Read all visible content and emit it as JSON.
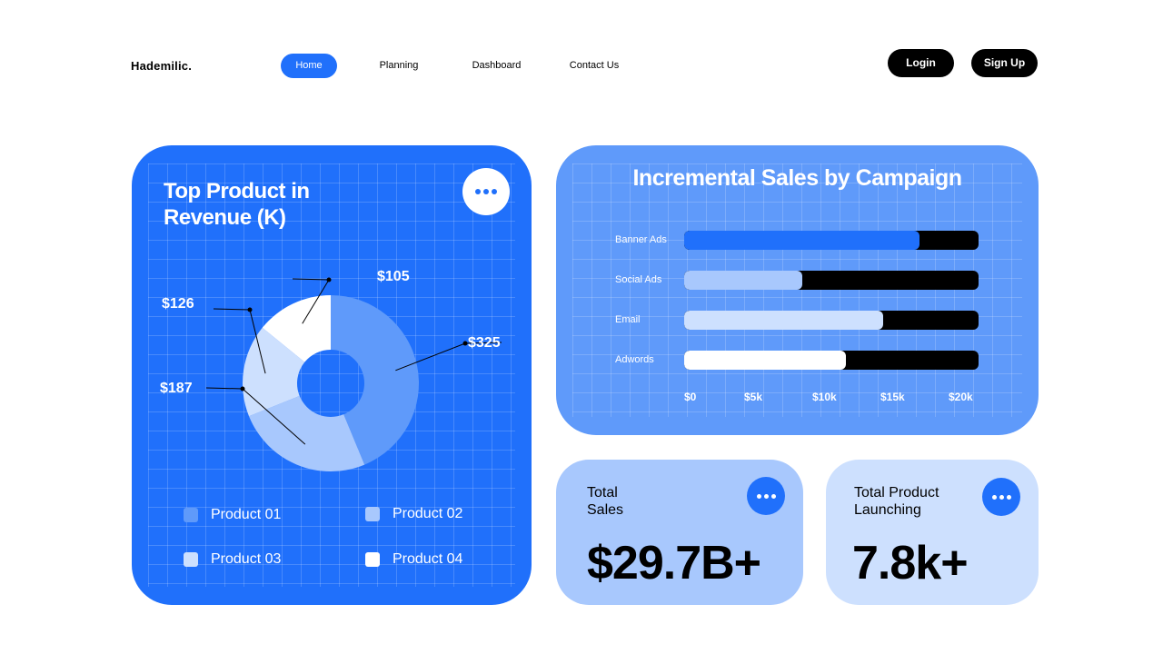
{
  "brand": "Hademilic.",
  "nav": {
    "items": [
      "Home",
      "Planning",
      "Dashboard",
      "Contact Us"
    ],
    "active": "Home"
  },
  "auth": {
    "login": "Login",
    "signup": "Sign Up"
  },
  "colors": {
    "primary_blue": "#2070fb",
    "campaign_card": "#5f9afa",
    "sales_card": "#a8c8fd",
    "launch_card": "#cde0fe",
    "black": "#000000"
  },
  "revenue_card": {
    "title": "Top Product in Revenue (K)",
    "icon": "more-horizontal-icon",
    "legend": [
      {
        "label": "Product 01",
        "color": "#5f9afa"
      },
      {
        "label": "Product 02",
        "color": "#a8c8fd"
      },
      {
        "label": "Product 03",
        "color": "#cde0fe"
      },
      {
        "label": "Product 04",
        "color": "#ffffff"
      }
    ]
  },
  "campaign_card": {
    "title": "Incremental Sales by Campaign"
  },
  "sales_card": {
    "label_line1": "Total",
    "label_line2": "Sales",
    "value": "$29.7B+",
    "icon": "more-horizontal-icon"
  },
  "launch_card": {
    "label_line1": "Total Product",
    "label_line2": "Launching",
    "value": "7.8k+",
    "icon": "more-horizontal-icon"
  },
  "chart_data": [
    {
      "type": "pie",
      "title": "Top Product in Revenue (K)",
      "donut": true,
      "categories": [
        "Product 01",
        "Product 02",
        "Product 03",
        "Product 04"
      ],
      "values": [
        325,
        187,
        126,
        105
      ],
      "data_labels": [
        "$325",
        "$187",
        "$126",
        "$105"
      ],
      "colors": [
        "#5f9afa",
        "#a8c8fd",
        "#cde0fe",
        "#ffffff"
      ],
      "legend_position": "bottom"
    },
    {
      "type": "bar",
      "orientation": "horizontal",
      "title": "Incremental Sales by Campaign",
      "categories": [
        "Banner Ads",
        "Social Ads",
        "Email",
        "Adwords"
      ],
      "values": [
        16000,
        8000,
        13500,
        11000
      ],
      "xlim": [
        0,
        20000
      ],
      "x_ticks": [
        "$0",
        "$5k",
        "$10k",
        "$15k",
        "$20k"
      ],
      "colors": [
        "#2070fb",
        "#a8c8fd",
        "#cde0fe",
        "#ffffff"
      ],
      "track_color": "#000000",
      "grid": true
    }
  ]
}
